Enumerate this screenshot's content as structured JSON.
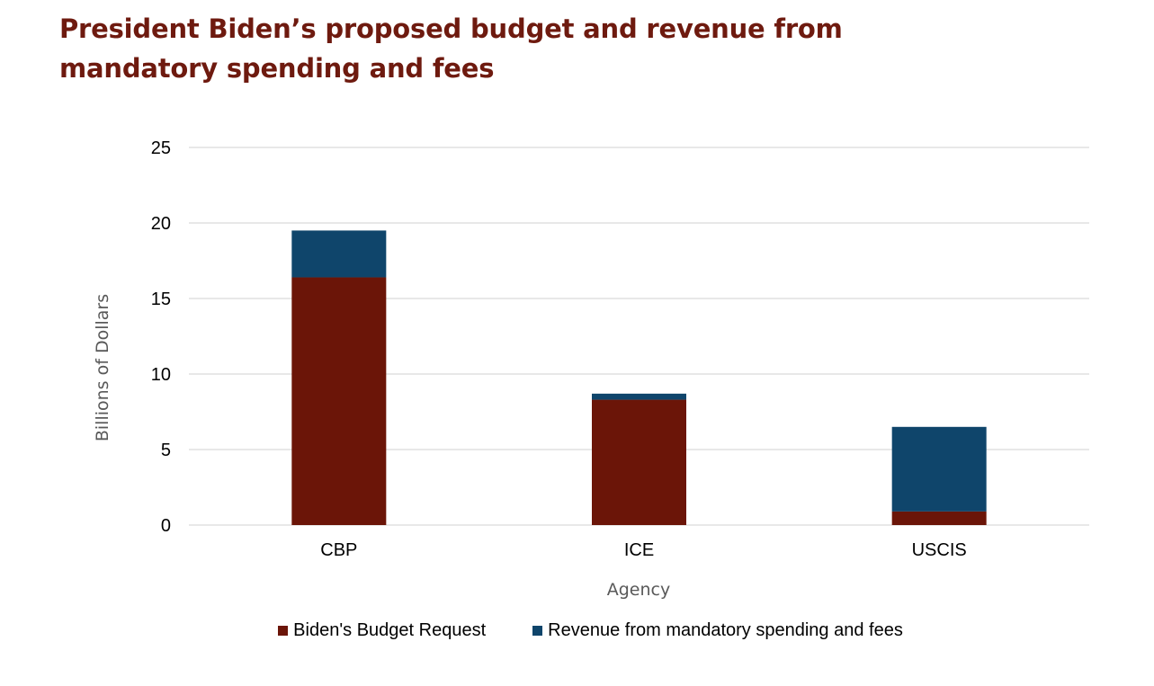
{
  "colors": {
    "budget": "#6b1508",
    "revenue": "#0f456b",
    "title": "#6e1a0f",
    "grid": "#d9d9d9"
  },
  "chart_data": {
    "type": "bar",
    "stacked": true,
    "title": "President Biden’s proposed budget and revenue from mandatory spending and fees",
    "xlabel": "Agency",
    "ylabel": "Billions of Dollars",
    "categories": [
      "CBP",
      "ICE",
      "USCIS"
    ],
    "series": [
      {
        "name": "Biden's Budget Request",
        "color": "#6b1508",
        "values": [
          16.4,
          8.3,
          0.9
        ]
      },
      {
        "name": "Revenue from mandatory spending and fees",
        "color": "#0f456b",
        "values": [
          3.1,
          0.4,
          5.6
        ]
      }
    ],
    "ylim": [
      0,
      25
    ],
    "yticks": [
      "0",
      "5",
      "10",
      "15",
      "20",
      "25"
    ],
    "grid": true,
    "legend_position": "bottom"
  }
}
